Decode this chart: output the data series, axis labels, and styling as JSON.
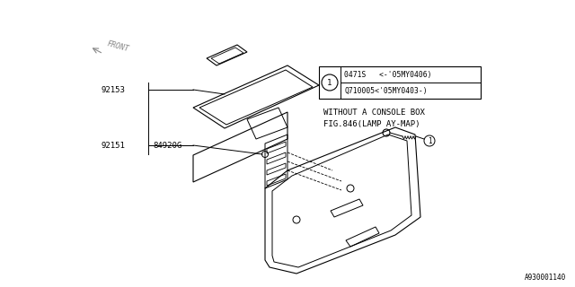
{
  "bg_color": "#ffffff",
  "line_color": "#000000",
  "title_note1": "WITHOUT A CONSOLE BOX",
  "title_note2": "FIG.846(LAMP AY-MAP)",
  "part1_label": "92151",
  "part2_label": "84920G",
  "part3_label": "92153",
  "callout1a": "0471S   <-'05MY0406)",
  "callout1b": "Q710005<'05MY0403-)",
  "callout_num": "1",
  "watermark": "A930001140",
  "front_label": "FRONT",
  "lw": 0.7
}
